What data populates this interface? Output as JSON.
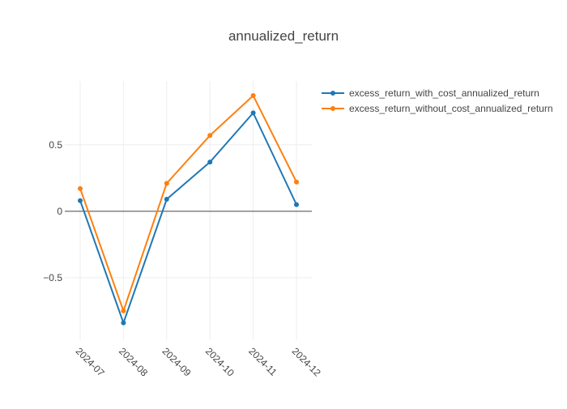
{
  "chart_data": {
    "type": "line",
    "title": "annualized_return",
    "xlabel": "",
    "ylabel": "",
    "categories": [
      "2024-07",
      "2024-08",
      "2024-09",
      "2024-10",
      "2024-11",
      "2024-12"
    ],
    "y_ticks": [
      -0.5,
      0,
      0.5
    ],
    "y_tick_labels": [
      "−0.5",
      "0",
      "0.5"
    ],
    "ylim": [
      -0.97,
      0.98
    ],
    "grid": true,
    "zero_line": true,
    "legend_position": "top-right",
    "series": [
      {
        "name": "excess_return_with_cost_annualized_return",
        "color": "#1f77b4",
        "values": [
          0.08,
          -0.84,
          0.09,
          0.37,
          0.74,
          0.05
        ]
      },
      {
        "name": "excess_return_without_cost_annualized_return",
        "color": "#ff7f0e",
        "values": [
          0.17,
          -0.75,
          0.21,
          0.57,
          0.87,
          0.22
        ]
      }
    ]
  }
}
